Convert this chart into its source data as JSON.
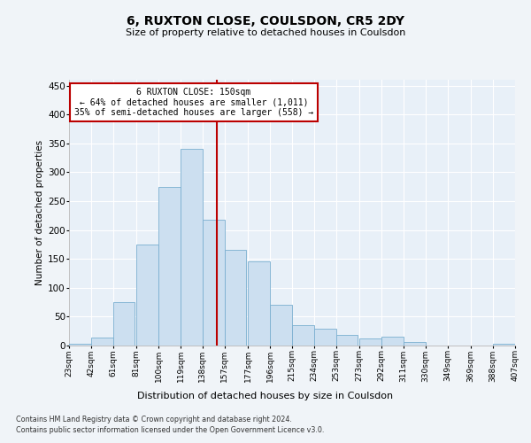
{
  "title": "6, RUXTON CLOSE, COULSDON, CR5 2DY",
  "subtitle": "Size of property relative to detached houses in Coulsdon",
  "xlabel": "Distribution of detached houses by size in Coulsdon",
  "ylabel": "Number of detached properties",
  "bar_color": "#ccdff0",
  "bar_edge_color": "#7aafd0",
  "background_color": "#e8f0f8",
  "grid_color": "#ffffff",
  "vline_x": 150,
  "vline_color": "#bb0000",
  "annotation_text": "6 RUXTON CLOSE: 150sqm\n← 64% of detached houses are smaller (1,011)\n35% of semi-detached houses are larger (558) →",
  "annotation_box_color": "#ffffff",
  "annotation_box_edge": "#bb0000",
  "footnote1": "Contains HM Land Registry data © Crown copyright and database right 2024.",
  "footnote2": "Contains public sector information licensed under the Open Government Licence v3.0.",
  "bin_labels": [
    "23sqm",
    "42sqm",
    "61sqm",
    "81sqm",
    "100sqm",
    "119sqm",
    "138sqm",
    "157sqm",
    "177sqm",
    "196sqm",
    "215sqm",
    "234sqm",
    "253sqm",
    "273sqm",
    "292sqm",
    "311sqm",
    "330sqm",
    "349sqm",
    "369sqm",
    "388sqm",
    "407sqm"
  ],
  "bin_edges": [
    23,
    42,
    61,
    81,
    100,
    119,
    138,
    157,
    177,
    196,
    215,
    234,
    253,
    273,
    292,
    311,
    330,
    349,
    369,
    388,
    407
  ],
  "bar_heights": [
    3,
    14,
    75,
    175,
    275,
    340,
    218,
    165,
    145,
    70,
    36,
    29,
    18,
    12,
    15,
    6,
    0,
    0,
    0,
    3
  ],
  "ylim": [
    0,
    460
  ],
  "yticks": [
    0,
    50,
    100,
    150,
    200,
    250,
    300,
    350,
    400,
    450
  ]
}
